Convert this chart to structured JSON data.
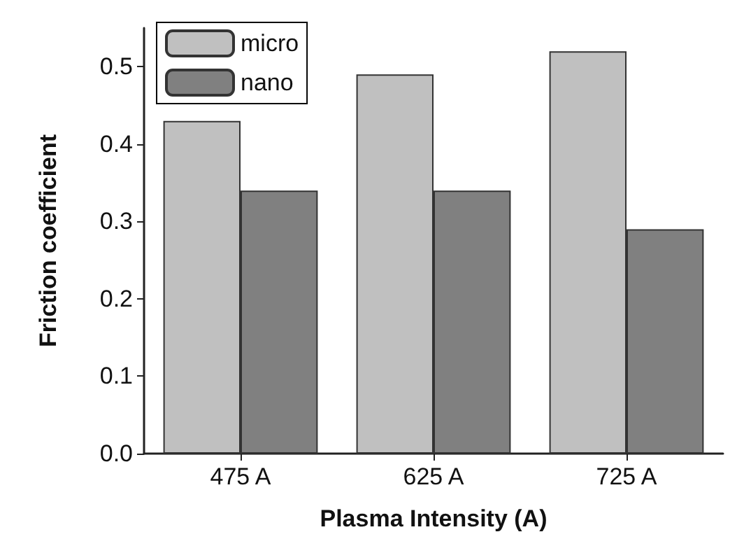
{
  "chart_data": {
    "type": "bar",
    "xlabel": "Plasma Intensity (A)",
    "ylabel": "Friction coefficient",
    "categories": [
      "475 A",
      "625 A",
      "725 A"
    ],
    "series": [
      {
        "name": "micro",
        "color": "#c0c0c0",
        "values": [
          0.43,
          0.49,
          0.52
        ]
      },
      {
        "name": "nano",
        "color": "#808080",
        "values": [
          0.34,
          0.34,
          0.29
        ]
      }
    ],
    "ylim": [
      0,
      0.55
    ],
    "yticks": [
      {
        "value": 0,
        "label": "0.0"
      },
      0.1,
      0.2,
      0.3,
      0.4,
      0.5
    ],
    "grid": false,
    "legend": "top left"
  }
}
